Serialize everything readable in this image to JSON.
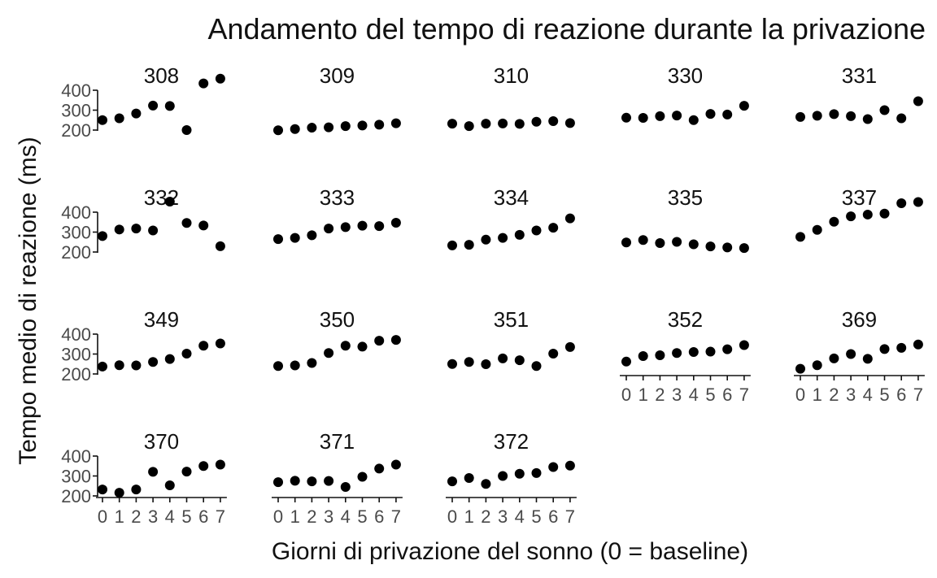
{
  "chart_data": {
    "type": "scatter",
    "title": "Andamento del tempo di reazione durante la privazione",
    "xlabel": "Giorni di privazione del sonno (0 = baseline)",
    "ylabel": "Tempo medio di reazione (ms)",
    "x": [
      0,
      1,
      2,
      3,
      4,
      5,
      6,
      7
    ],
    "x_ticks": [
      "0",
      "1",
      "2",
      "3",
      "4",
      "5",
      "6",
      "7"
    ],
    "y_ticks": [
      "200",
      "300",
      "400"
    ],
    "ylim": [
      195,
      470
    ],
    "facets": [
      {
        "label": "308",
        "values": [
          250,
          259,
          283,
          323,
          321,
          200,
          434,
          458
        ]
      },
      {
        "label": "309",
        "values": [
          199,
          205,
          212,
          214,
          220,
          223,
          227,
          234
        ]
      },
      {
        "label": "310",
        "values": [
          232,
          220,
          232,
          233,
          231,
          242,
          245,
          235
        ]
      },
      {
        "label": "330",
        "values": [
          262,
          261,
          270,
          273,
          250,
          281,
          278,
          322
        ]
      },
      {
        "label": "331",
        "values": [
          266,
          272,
          280,
          270,
          255,
          300,
          259,
          345
        ]
      },
      {
        "label": "332",
        "values": [
          280,
          313,
          318,
          308,
          453,
          346,
          333,
          229
        ]
      },
      {
        "label": "333",
        "values": [
          265,
          271,
          284,
          318,
          325,
          332,
          330,
          347
        ]
      },
      {
        "label": "334",
        "values": [
          233,
          236,
          262,
          271,
          286,
          308,
          322,
          369
        ]
      },
      {
        "label": "335",
        "values": [
          248,
          260,
          245,
          251,
          239,
          228,
          223,
          220
        ]
      },
      {
        "label": "337",
        "values": [
          276,
          311,
          352,
          379,
          388,
          393,
          445,
          451
        ]
      },
      {
        "label": "349",
        "values": [
          237,
          244,
          243,
          260,
          275,
          302,
          342,
          353
        ]
      },
      {
        "label": "350",
        "values": [
          240,
          243,
          255,
          305,
          342,
          337,
          367,
          371
        ]
      },
      {
        "label": "351",
        "values": [
          250,
          260,
          249,
          278,
          269,
          240,
          302,
          335
        ]
      },
      {
        "label": "352",
        "values": [
          262,
          290,
          294,
          305,
          310,
          312,
          324,
          345
        ]
      },
      {
        "label": "369",
        "values": [
          226,
          244,
          278,
          300,
          276,
          325,
          331,
          348
        ]
      },
      {
        "label": "370",
        "values": [
          232,
          216,
          232,
          321,
          253,
          322,
          350,
          357
        ]
      },
      {
        "label": "371",
        "values": [
          269,
          276,
          273,
          275,
          245,
          296,
          337,
          357
        ]
      },
      {
        "label": "372",
        "values": [
          273,
          290,
          260,
          300,
          311,
          315,
          345,
          352
        ]
      }
    ]
  }
}
